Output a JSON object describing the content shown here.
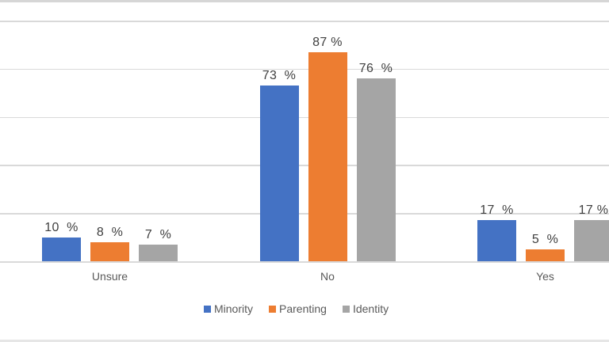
{
  "chart_data": {
    "type": "bar",
    "title": "",
    "xlabel": "",
    "ylabel": "",
    "categories": [
      "Unsure",
      "No",
      "Yes"
    ],
    "series": [
      {
        "name": "Minority",
        "color": "#4472C4",
        "values": [
          10,
          73,
          17
        ],
        "labels": [
          "10  %",
          "73  %",
          "17  %"
        ]
      },
      {
        "name": "Parenting",
        "color": "#ED7D31",
        "values": [
          8,
          87,
          5
        ],
        "labels": [
          "8  %",
          "87 %",
          "5  %"
        ]
      },
      {
        "name": "Identity",
        "color": "#A5A5A5",
        "values": [
          7,
          76,
          17
        ],
        "labels": [
          "7  %",
          "76  %",
          "17 %"
        ]
      }
    ],
    "ylim": [
      0,
      100
    ],
    "grid": true,
    "gridline_step": 20,
    "legend_position": "bottom",
    "value_suffix": "%"
  },
  "colors": {
    "gridline": "#d9d9d9",
    "value_label_text": "#3f3f3f",
    "axis_text": "#595959",
    "background": "#ffffff"
  }
}
